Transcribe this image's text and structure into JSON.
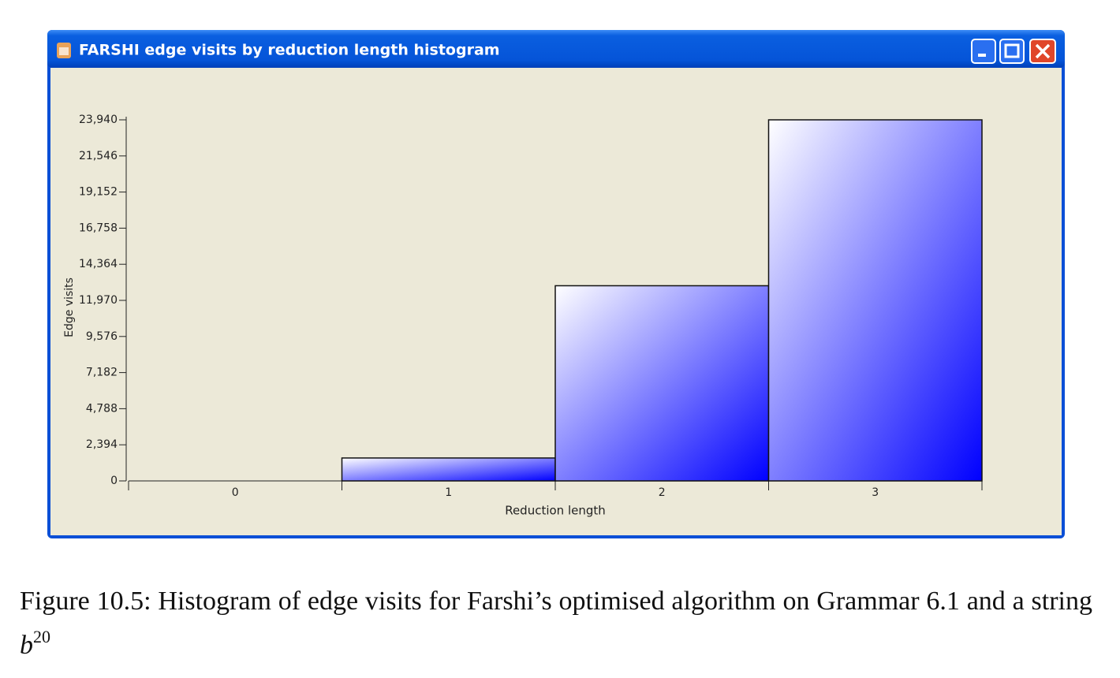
{
  "window": {
    "title": "FARSHI edge visits by reduction length histogram"
  },
  "chart_data": {
    "type": "bar",
    "x_label": "Reduction length",
    "y_label": "Edge visits",
    "categories": [
      "0",
      "1",
      "2",
      "3"
    ],
    "values": [
      0,
      1520,
      12940,
      23940
    ],
    "color": "#0000ff",
    "ylim": [
      0,
      23940
    ],
    "yticks": [
      0,
      {
        "value": 2394,
        "label": "2,394"
      },
      {
        "value": 4788,
        "label": "4,788"
      },
      {
        "value": 7182,
        "label": "7,182"
      },
      {
        "value": 9576,
        "label": "9,576"
      },
      {
        "value": 11970,
        "label": "11,970"
      },
      {
        "value": 14364,
        "label": "14,364"
      },
      {
        "value": 16758,
        "label": "16,758"
      },
      {
        "value": 19152,
        "label": "19,152"
      },
      {
        "value": 21546,
        "label": "21,546"
      },
      {
        "value": 23940,
        "label": "23,940"
      }
    ],
    "grid": false
  },
  "caption": {
    "text": "Figure 10.5: Histogram of edge visits for Farshi’s optimised algorithm on Grammar 6.1 and a string ",
    "variable": "b",
    "superscript": "20"
  }
}
